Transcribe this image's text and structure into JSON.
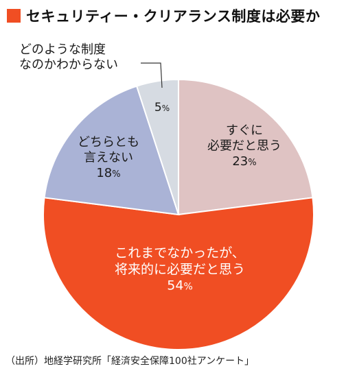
{
  "title": "セキュリティー・クリアランス制度は必要か",
  "source": "（出所）地経学研究所「経済安全保障100社アンケート」",
  "colors": {
    "title_marker": "#f04e23"
  },
  "chart_data": {
    "type": "pie",
    "title": "セキュリティー・クリアランス制度は必要か",
    "unit": "%",
    "slices": [
      {
        "label_lines": [
          "すぐに",
          "必要だと思う"
        ],
        "value": 23,
        "color": "#dfc3c3",
        "text_color": "#1a1a1a"
      },
      {
        "label_lines": [
          "これまでなかったが、",
          "将来的に必要だと思う"
        ],
        "value": 54,
        "color": "#f04e23",
        "text_color": "#ffffff"
      },
      {
        "label_lines": [
          "どちらとも",
          "言えない"
        ],
        "value": 18,
        "color": "#aab3d6",
        "text_color": "#1a1a1a"
      },
      {
        "label_lines": [
          "どのような制度",
          "なのかわからない"
        ],
        "value": 5,
        "color": "#d6dbe2",
        "text_color": "#1a1a1a"
      }
    ]
  }
}
